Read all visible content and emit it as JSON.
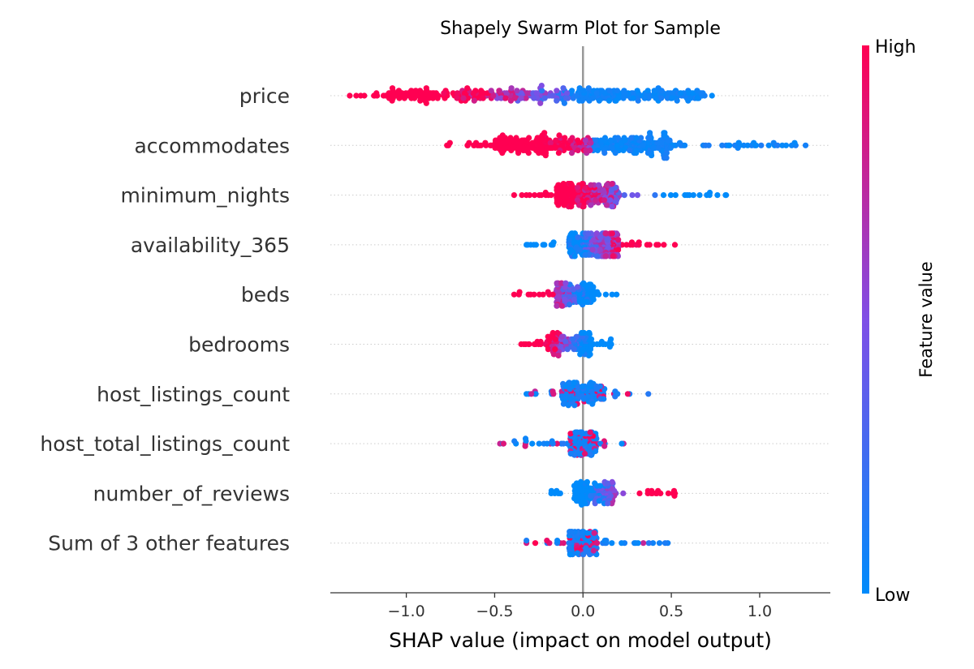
{
  "chart_data": {
    "type": "scatter",
    "subtype": "shap-beeswarm",
    "title": "Shapely Swarm Plot for Sample",
    "xlabel": "SHAP value (impact on model output)",
    "xlim": [
      -1.43,
      1.4
    ],
    "xticks": [
      -1.0,
      -0.5,
      0.0,
      0.5,
      1.0
    ],
    "xtick_labels": [
      "−1.0",
      "−0.5",
      "0.0",
      "0.5",
      "1.0"
    ],
    "zero_line": 0.0,
    "colorbar": {
      "label": "Feature value",
      "high_label": "High",
      "low_label": "Low",
      "low_color": "#008bfb",
      "mid_color": "#7f4fe6",
      "high_color": "#ff0052"
    },
    "grid": "dotted horizontal row guides",
    "features": [
      {
        "name": "price",
        "shap_range": [
          -1.32,
          0.73
        ],
        "dense_core": [
          -1.12,
          0.68
        ],
        "low_value_side": "positive",
        "high_value_side": "negative"
      },
      {
        "name": "accommodates",
        "shap_range": [
          -0.77,
          1.26
        ],
        "dense_core": [
          -0.5,
          0.5
        ],
        "low_value_side": "positive",
        "high_value_side": "negative"
      },
      {
        "name": "minimum_nights",
        "shap_range": [
          -0.39,
          0.81
        ],
        "dense_core": [
          -0.15,
          0.2
        ],
        "low_value_side": "positive",
        "high_value_side": "negative"
      },
      {
        "name": "availability_365",
        "shap_range": [
          -0.32,
          0.52
        ],
        "dense_core": [
          -0.08,
          0.2
        ],
        "low_value_side": "negative",
        "high_value_side": "positive"
      },
      {
        "name": "beds",
        "shap_range": [
          -0.39,
          0.19
        ],
        "dense_core": [
          -0.15,
          0.06
        ],
        "low_value_side": "positive",
        "high_value_side": "negative"
      },
      {
        "name": "bedrooms",
        "shap_range": [
          -0.35,
          0.16
        ],
        "dense_core": [
          -0.2,
          0.05
        ],
        "low_value_side": "positive",
        "high_value_side": "negative"
      },
      {
        "name": "host_listings_count",
        "shap_range": [
          -0.32,
          0.37
        ],
        "dense_core": [
          -0.12,
          0.12
        ],
        "low_value_side": "mixed",
        "high_value_side": "mixed"
      },
      {
        "name": "host_total_listings_count",
        "shap_range": [
          -0.47,
          0.23
        ],
        "dense_core": [
          -0.08,
          0.08
        ],
        "low_value_side": "mixed",
        "high_value_side": "mixed"
      },
      {
        "name": "number_of_reviews",
        "shap_range": [
          -0.18,
          0.52
        ],
        "dense_core": [
          -0.05,
          0.18
        ],
        "low_value_side": "negative",
        "high_value_side": "positive"
      },
      {
        "name": "Sum of 3 other features",
        "shap_range": [
          -0.32,
          0.48
        ],
        "dense_core": [
          -0.08,
          0.08
        ],
        "low_value_side": "mixed",
        "high_value_side": "mixed"
      }
    ]
  }
}
